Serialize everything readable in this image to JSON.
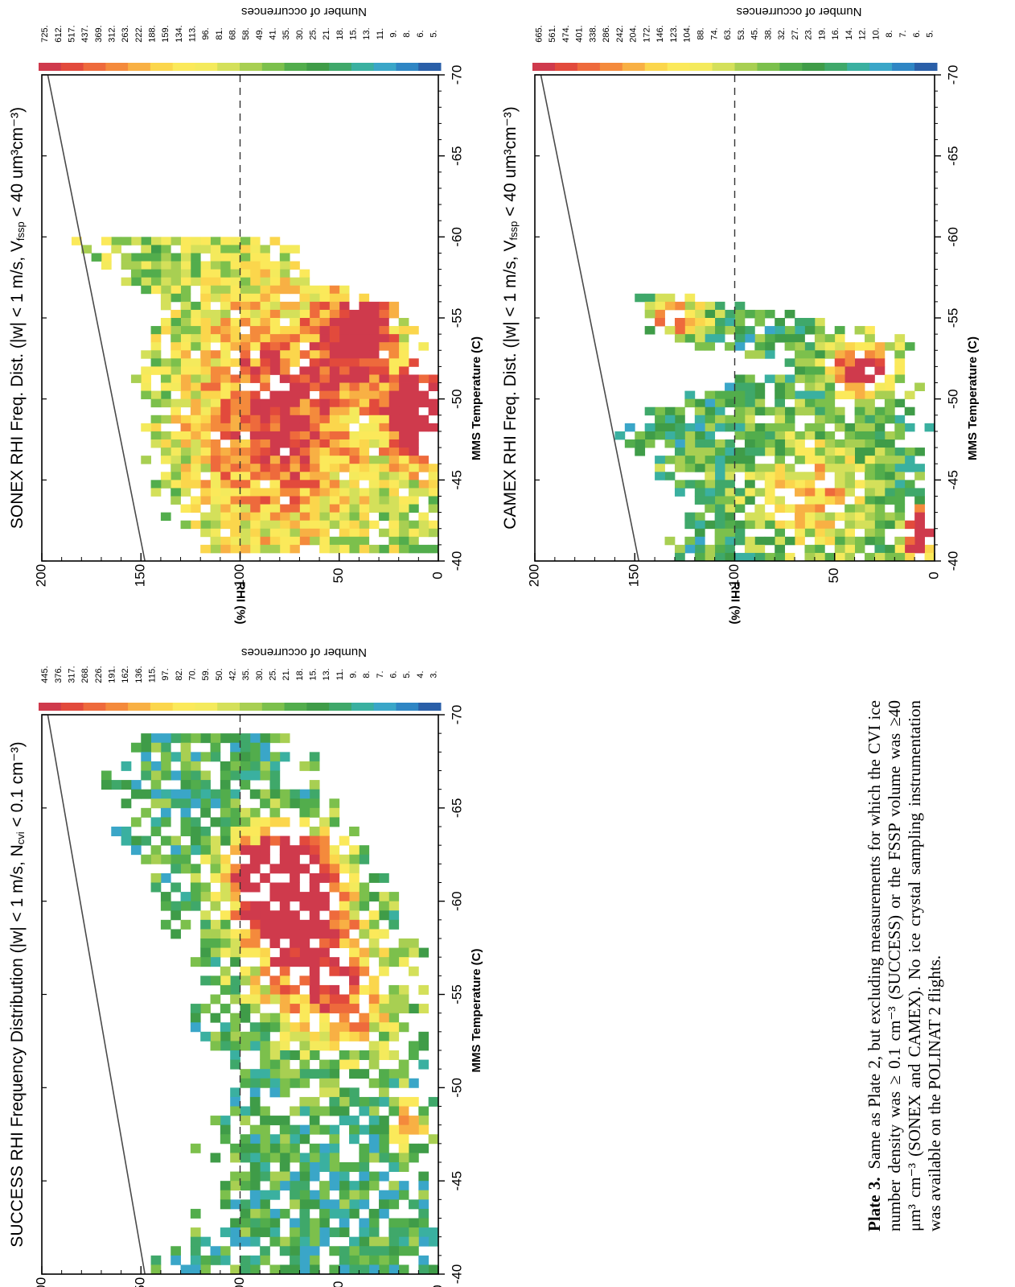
{
  "figure": {
    "caption_label": "Plate 3.",
    "caption_text": "Same as Plate 2, but excluding measurements for which the CVI ice number density was ≥ 0.1 cm⁻³ (SUCCESS) or the FSSP volume was ≥40 μm³ cm⁻³ (SONEX and CAMEX). No ice crystal sampling instrumentation was available on the POLINAT 2 flights."
  },
  "colors": {
    "ramp": [
      "#cf3a4c",
      "#e24a3c",
      "#ee6a3c",
      "#f48a3c",
      "#f8b044",
      "#fbd64c",
      "#fbe95a",
      "#f4ea5c",
      "#d4e05a",
      "#a8cf52",
      "#7cc04c",
      "#52ad4c",
      "#3f9c48",
      "#3fa86a",
      "#3ab0a0",
      "#3aa6c8",
      "#2f86c4",
      "#2a5fa8"
    ],
    "line": "#4a4a4a"
  },
  "chart_data": [
    {
      "type": "heatmap",
      "title": "SUCCESS RHI Frequency Distribution (|w| < 1 m/s, N",
      "title_sub": "cvi",
      "title_end": " < 0.1 cm⁻³)",
      "xlabel": "MMS Temperature (C)",
      "ylabel": "RHI (%)",
      "xlim": [
        -70,
        -40
      ],
      "ylim": [
        0,
        200
      ],
      "xticks": [
        "-70",
        "-65",
        "-60",
        "-55",
        "-50",
        "-45",
        "-40"
      ],
      "yticks": [
        "0",
        "50",
        "100",
        "150",
        "200"
      ],
      "colorbar_title": "Number of occurrences",
      "colorbar_labels": [
        "3.",
        "4.",
        "5.",
        "6.",
        "7.",
        "8.",
        "9.",
        "11.",
        "13.",
        "15.",
        "18.",
        "21.",
        "25.",
        "30.",
        "35.",
        "42.",
        "50.",
        "59.",
        "70.",
        "82.",
        "97.",
        "115.",
        "136.",
        "162.",
        "191.",
        "226.",
        "268.",
        "317.",
        "376.",
        "445."
      ],
      "reference_lines": [
        "ice saturation (100%)",
        "water saturation"
      ],
      "seed": 11,
      "blobs": [
        {
          "t": -61.5,
          "r": 78,
          "st": 1.5,
          "sr": 18,
          "w": 1.0
        },
        {
          "t": -59,
          "r": 75,
          "st": 2.5,
          "sr": 20,
          "w": 0.7
        },
        {
          "t": -55,
          "r": 50,
          "st": 2.5,
          "sr": 22,
          "w": 0.55
        },
        {
          "t": -48,
          "r": 15,
          "st": 0.8,
          "sr": 6,
          "w": 0.6
        }
      ],
      "region": [
        {
          "t": -68.5,
          "lo": 70,
          "hi": 148
        },
        {
          "t": -66,
          "lo": 60,
          "hi": 168
        },
        {
          "t": -63,
          "lo": 40,
          "hi": 155
        },
        {
          "t": -60,
          "lo": 25,
          "hi": 140
        },
        {
          "t": -57,
          "lo": 10,
          "hi": 120
        },
        {
          "t": -53,
          "lo": 10,
          "hi": 120
        },
        {
          "t": -50,
          "lo": 5,
          "hi": 95
        },
        {
          "t": -47,
          "lo": 5,
          "hi": 118
        },
        {
          "t": -44,
          "lo": 5,
          "hi": 110
        },
        {
          "t": -40,
          "lo": 5,
          "hi": 148
        }
      ],
      "base": 0.12,
      "density": 0.75
    },
    {
      "type": "heatmap",
      "title": "SONEX RHI Freq. Dist. (|w| < 1 m/s, V",
      "title_sub": "fssp",
      "title_end": " < 40 um³cm⁻³)",
      "xlabel": "MMS Temperature (C)",
      "ylabel": "RHI (%)",
      "xlim": [
        -70,
        -40
      ],
      "ylim": [
        0,
        200
      ],
      "xticks": [
        "-70",
        "-65",
        "-60",
        "-55",
        "-50",
        "-45",
        "-40"
      ],
      "yticks": [
        "0",
        "50",
        "100",
        "150",
        "200"
      ],
      "colorbar_title": "Number of occurrences",
      "colorbar_labels": [
        "5.",
        "6.",
        "8.",
        "9.",
        "11.",
        "13.",
        "15.",
        "18.",
        "21.",
        "25.",
        "30.",
        "35.",
        "41.",
        "49.",
        "58.",
        "68.",
        "81.",
        "96.",
        "113.",
        "134.",
        "159.",
        "188.",
        "222.",
        "263.",
        "312.",
        "369.",
        "437.",
        "517.",
        "612.",
        "725."
      ],
      "reference_lines": [
        "ice saturation (100%)",
        "water saturation"
      ],
      "seed": 23,
      "blobs": [
        {
          "t": -49,
          "r": 10,
          "st": 2,
          "sr": 10,
          "w": 0.9
        },
        {
          "t": -49,
          "r": 80,
          "st": 5,
          "sr": 30,
          "w": 0.5
        },
        {
          "t": -54,
          "r": 40,
          "st": 2,
          "sr": 12,
          "w": 0.6
        }
      ],
      "region": [
        {
          "t": -59.5,
          "lo": 80,
          "hi": 180
        },
        {
          "t": -58,
          "lo": 70,
          "hi": 160
        },
        {
          "t": -56,
          "lo": 30,
          "hi": 140
        },
        {
          "t": -54,
          "lo": 10,
          "hi": 145
        },
        {
          "t": -51,
          "lo": 0,
          "hi": 150
        },
        {
          "t": -48,
          "lo": 0,
          "hi": 145
        },
        {
          "t": -45,
          "lo": 0,
          "hi": 140
        },
        {
          "t": -41,
          "lo": 0,
          "hi": 125
        }
      ],
      "base": 0.3,
      "density": 0.9
    },
    {
      "type": "heatmap",
      "title": "CAMEX RHI Freq. Dist. (|w| < 1 m/s, V",
      "title_sub": "fssp",
      "title_end": " < 40 um³cm⁻³)",
      "xlabel": "MMS Temperature (C)",
      "ylabel": "RHI (%)",
      "xlim": [
        -70,
        -40
      ],
      "ylim": [
        0,
        200
      ],
      "xticks": [
        "-70",
        "-65",
        "-60",
        "-55",
        "-50",
        "-45",
        "-40"
      ],
      "yticks": [
        "0",
        "50",
        "100",
        "150",
        "200"
      ],
      "colorbar_title": "Number of occurrences",
      "colorbar_labels": [
        "5.",
        "6.",
        "7.",
        "8.",
        "10.",
        "12.",
        "14.",
        "16.",
        "19.",
        "23.",
        "27.",
        "32.",
        "38.",
        "45.",
        "53.",
        "63.",
        "74.",
        "88.",
        "104.",
        "123.",
        "146.",
        "172.",
        "204.",
        "242.",
        "286.",
        "338.",
        "401.",
        "474.",
        "561.",
        "665."
      ],
      "reference_lines": [
        "ice saturation (100%)",
        "water saturation"
      ],
      "seed": 37,
      "blobs": [
        {
          "t": -41.5,
          "r": 8,
          "st": 1.2,
          "sr": 6,
          "w": 0.9
        },
        {
          "t": -52,
          "r": 35,
          "st": 1.2,
          "sr": 12,
          "w": 0.8
        },
        {
          "t": -55,
          "r": 130,
          "st": 0.8,
          "sr": 10,
          "w": 0.6
        },
        {
          "t": -44,
          "r": 60,
          "st": 2.5,
          "sr": 20,
          "w": 0.4
        }
      ],
      "region": [
        {
          "t": -56,
          "lo": 110,
          "hi": 150
        },
        {
          "t": -54,
          "lo": 20,
          "hi": 140
        },
        {
          "t": -52,
          "lo": 15,
          "hi": 75
        },
        {
          "t": -50,
          "lo": 10,
          "hi": 130
        },
        {
          "t": -48,
          "lo": 5,
          "hi": 160
        },
        {
          "t": -46,
          "lo": 5,
          "hi": 140
        },
        {
          "t": -43,
          "lo": 5,
          "hi": 120
        },
        {
          "t": -40.5,
          "lo": 0,
          "hi": 130
        }
      ],
      "base": 0.15,
      "density": 0.8
    }
  ]
}
